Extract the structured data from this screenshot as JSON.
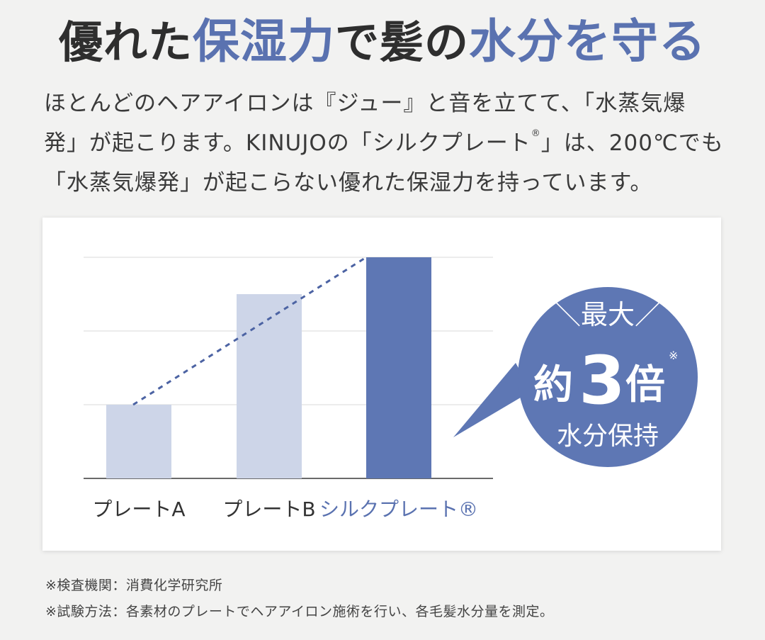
{
  "headline": {
    "part1": "優れた",
    "accent1": "保湿力",
    "part2": "で髪の",
    "accent2": "水分を守る"
  },
  "lead": {
    "line1": "ほとんどのヘアアイロンは『ジュー』と音を立てて、「水蒸気爆",
    "line2_a": "発」が起こります。KINUJOの「シルクプレート",
    "line2_mark": "®",
    "line2_b": "」は、200℃でも",
    "line3": "「水蒸気爆発」が起こらない優れた保湿力を持っています。"
  },
  "chart_data": {
    "type": "bar",
    "categories": [
      "プレートA",
      "プレートB",
      "シルクプレート®"
    ],
    "values": [
      1,
      2.5,
      3
    ],
    "ylim": [
      0,
      3
    ],
    "grid": true,
    "trend_line": "dashed",
    "colors": {
      "light": "#cdd5e8",
      "highlight": "#5e77b4",
      "trend": "#4c63a3"
    },
    "label_colors": [
      "#333333",
      "#333333",
      "#5a72b0"
    ]
  },
  "callout": {
    "top": "＼最大／",
    "prefix": "約",
    "number": "3",
    "suffix": "倍",
    "mark": "※",
    "bottom": "水分保持",
    "bg": "#5e77b4"
  },
  "footnotes": {
    "line1": "※検査機関：消費化学研究所",
    "line2": "※試験方法：各素材のプレートでヘアアイロン施術を行い、各毛髪水分量を測定。"
  }
}
